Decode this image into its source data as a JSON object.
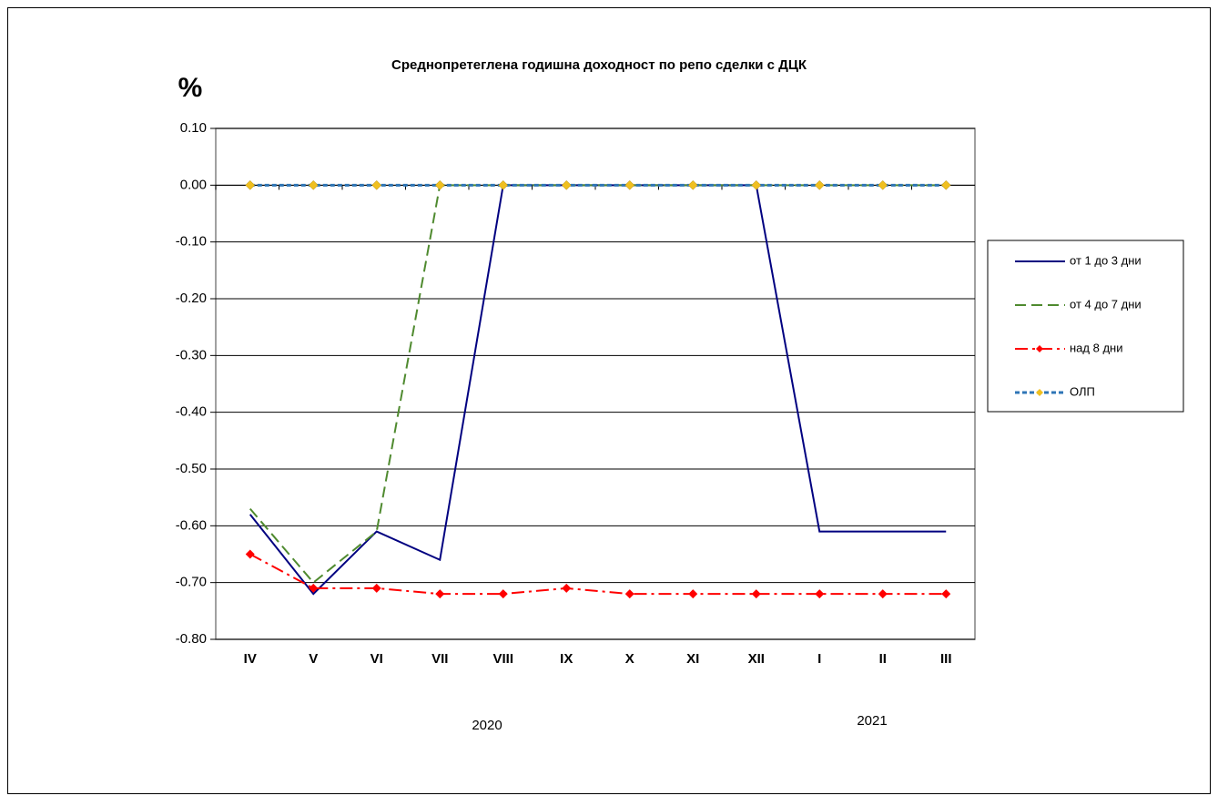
{
  "chart_data": {
    "type": "line",
    "title": "Среднопретеглена годишна доходност по репо сделки с ДЦК",
    "y_label": "%",
    "categories": [
      "IV",
      "V",
      "VI",
      "VII",
      "VIII",
      "IX",
      "X",
      "XI",
      "XII",
      "I",
      "II",
      "III"
    ],
    "year_labels": [
      "2020",
      "2021"
    ],
    "ylim": [
      -0.8,
      0.1
    ],
    "yticks": [
      {
        "value": 0.1,
        "label": "0.10"
      },
      {
        "value": 0,
        "label": "0.00"
      },
      {
        "value": -0.1,
        "label": "-0.10"
      },
      {
        "value": -0.2,
        "label": "-0.20"
      },
      {
        "value": -0.3,
        "label": "-0.30"
      },
      {
        "value": -0.4,
        "label": "-0.40"
      },
      {
        "value": -0.5,
        "label": "-0.50"
      },
      {
        "value": -0.6,
        "label": "-0.60"
      },
      {
        "value": -0.7,
        "label": "-0.70"
      },
      {
        "value": -0.8,
        "label": "-0.80"
      }
    ],
    "grid": true,
    "legend": "right",
    "series": [
      {
        "name": "от 1 до 3 дни",
        "color": "#000080",
        "style": "solid",
        "values": [
          -0.58,
          -0.72,
          -0.61,
          -0.66,
          0,
          0,
          0,
          0,
          0,
          -0.61,
          -0.61,
          -0.61
        ]
      },
      {
        "name": "от 4 до 7 дни",
        "color": "#4f8a2f",
        "style": "dashed",
        "values": [
          -0.57,
          -0.7,
          -0.61,
          0,
          0,
          0,
          0,
          0,
          0,
          0,
          0,
          0
        ]
      },
      {
        "name": "над 8 дни",
        "color": "#ff0000",
        "style": "dashdot",
        "marker": "diamond",
        "marker_color": "#ff0000",
        "values": [
          -0.65,
          -0.71,
          -0.71,
          -0.72,
          -0.72,
          -0.71,
          -0.72,
          -0.72,
          -0.72,
          -0.72,
          -0.72,
          -0.72
        ]
      },
      {
        "name": "ОЛП",
        "color": "#2e75b6",
        "style": "dotted",
        "marker": "diamond",
        "marker_color": "#f0c020",
        "values": [
          0,
          0,
          0,
          0,
          0,
          0,
          0,
          0,
          0,
          0,
          0,
          0
        ]
      }
    ]
  }
}
